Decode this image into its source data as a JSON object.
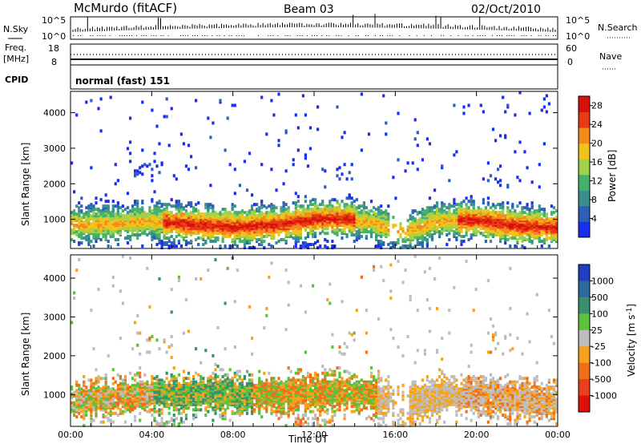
{
  "header": {
    "radar": "McMurdo (fitACF)",
    "beam": "Beam 03",
    "date": "02/Oct/2010"
  },
  "top_panels": {
    "nsky_label": "N.Sky",
    "nsky_ticks": [
      "10^5",
      "10^0"
    ],
    "nsearch_label": "N.Search",
    "nsearch_ticks": [
      "10^5",
      "10^0"
    ],
    "freq_label": "Freq.",
    "freq_unit": "[MHz]",
    "freq_ticks": [
      "18",
      "8"
    ],
    "nave_label": "Nave",
    "nave_ticks": [
      "60",
      "0"
    ],
    "cpid_label": "CPID",
    "cpid_value": "normal (fast) 151"
  },
  "chart_data": [
    {
      "type": "heatmap",
      "quantity": "Power",
      "ylabel": "Slant Range [km]",
      "xlabel": "Time UT",
      "x_ticks": [
        "00:00",
        "04:00",
        "08:00",
        "12:00",
        "16:00",
        "20:00",
        "00:00"
      ],
      "xlim_hours": [
        0,
        24
      ],
      "ylim": [
        180,
        4600
      ],
      "y_ticks": [
        1000,
        2000,
        3000,
        4000
      ],
      "colorbar": {
        "label": "Power [dB]",
        "ticks": [
          4,
          8,
          12,
          16,
          20,
          24,
          28
        ],
        "range": [
          0,
          30
        ],
        "colors": [
          "#1a2ef0",
          "#2d5fb8",
          "#3a8f8c",
          "#45b06a",
          "#9fd14a",
          "#f0c419",
          "#f5891c",
          "#e83a12",
          "#d8100a"
        ]
      },
      "main_band": [
        {
          "t": 0,
          "r": 860
        },
        {
          "t": 2,
          "r": 880
        },
        {
          "t": 4,
          "r": 960
        },
        {
          "t": 6,
          "r": 870
        },
        {
          "t": 8,
          "r": 800
        },
        {
          "t": 10,
          "r": 850
        },
        {
          "t": 12,
          "r": 1020
        },
        {
          "t": 13.5,
          "r": 1040
        },
        {
          "t": 15,
          "r": 880
        },
        {
          "t": 16.5,
          "r": 650
        },
        {
          "t": 18,
          "r": 960
        },
        {
          "t": 20,
          "r": 1000
        },
        {
          "t": 22,
          "r": 820
        },
        {
          "t": 24,
          "r": 780
        }
      ]
    },
    {
      "type": "heatmap",
      "quantity": "Velocity",
      "ylabel": "Slant Range [km]",
      "xlabel": "Time UT",
      "x_ticks": [
        "00:00",
        "04:00",
        "08:00",
        "12:00",
        "16:00",
        "20:00",
        "00:00"
      ],
      "xlim_hours": [
        0,
        24
      ],
      "ylim": [
        180,
        4600
      ],
      "y_ticks": [
        1000,
        2000,
        3000,
        4000
      ],
      "colorbar": {
        "label": "Velocity [m s^-1]",
        "ticks": [
          "1000",
          "500",
          "100",
          "25",
          "-25",
          "-100",
          "-500",
          "-1000"
        ],
        "colors": [
          "#1f3fbf",
          "#2f6a9e",
          "#3a8f6c",
          "#5cc23c",
          "#bdbdbd",
          "#f5a21c",
          "#f0701a",
          "#e8401a",
          "#e00f0a"
        ]
      },
      "main_band": [
        {
          "t": 0,
          "r": 820
        },
        {
          "t": 2,
          "r": 900
        },
        {
          "t": 4,
          "r": 1000
        },
        {
          "t": 6,
          "r": 1020
        },
        {
          "t": 8,
          "r": 1000
        },
        {
          "t": 10,
          "r": 1000
        },
        {
          "t": 12,
          "r": 1050
        },
        {
          "t": 13.5,
          "r": 1080
        },
        {
          "t": 15,
          "r": 950
        },
        {
          "t": 16.5,
          "r": 700
        },
        {
          "t": 18,
          "r": 950
        },
        {
          "t": 20,
          "r": 1000
        },
        {
          "t": 22,
          "r": 840
        },
        {
          "t": 24,
          "r": 820
        }
      ]
    }
  ]
}
